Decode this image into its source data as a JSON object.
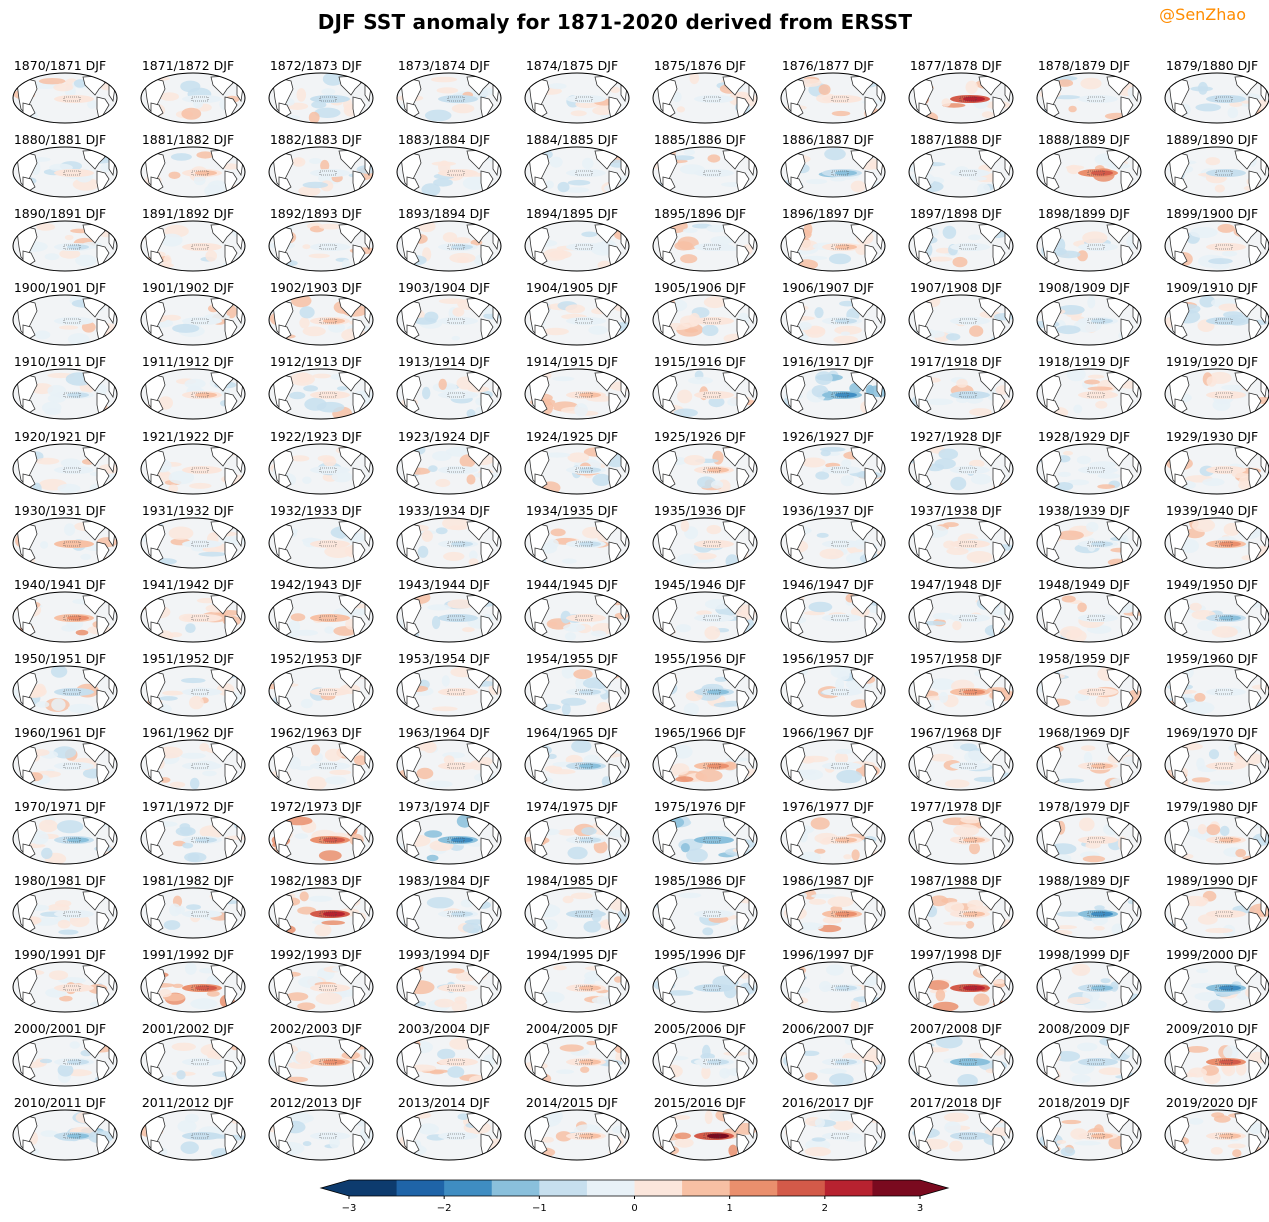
{
  "title": "DJF SST anomaly for 1871-2020 derived from ERSST",
  "credit": "@SenZhao",
  "colors": {
    "credit": "#ff8c00",
    "ocean_neutral": "#f2f4f6",
    "land": "#ffffff",
    "coast": "#333333",
    "levels": [
      "#0d3b6e",
      "#1f64a8",
      "#3f8dc2",
      "#8ac0dc",
      "#c7dfee",
      "#e8f1f7",
      "#fbe6dc",
      "#f7c0a4",
      "#ea8f6d",
      "#d35a49",
      "#b72230",
      "#7a0a1f"
    ]
  },
  "chart_data": {
    "type": "heatmap",
    "title": "DJF SST anomaly for 1871-2020 derived from ERSST",
    "layout": "small multiples, 15 rows x 10 columns of global maps",
    "panels": [
      "1870/1871 DJF",
      "1871/1872 DJF",
      "1872/1873 DJF",
      "1873/1874 DJF",
      "1874/1875 DJF",
      "1875/1876 DJF",
      "1876/1877 DJF",
      "1877/1878 DJF",
      "1878/1879 DJF",
      "1879/1880 DJF",
      "1880/1881 DJF",
      "1881/1882 DJF",
      "1882/1883 DJF",
      "1883/1884 DJF",
      "1884/1885 DJF",
      "1885/1886 DJF",
      "1886/1887 DJF",
      "1887/1888 DJF",
      "1888/1889 DJF",
      "1889/1890 DJF",
      "1890/1891 DJF",
      "1891/1892 DJF",
      "1892/1893 DJF",
      "1893/1894 DJF",
      "1894/1895 DJF",
      "1895/1896 DJF",
      "1896/1897 DJF",
      "1897/1898 DJF",
      "1898/1899 DJF",
      "1899/1900 DJF",
      "1900/1901 DJF",
      "1901/1902 DJF",
      "1902/1903 DJF",
      "1903/1904 DJF",
      "1904/1905 DJF",
      "1905/1906 DJF",
      "1906/1907 DJF",
      "1907/1908 DJF",
      "1908/1909 DJF",
      "1909/1910 DJF",
      "1910/1911 DJF",
      "1911/1912 DJF",
      "1912/1913 DJF",
      "1913/1914 DJF",
      "1914/1915 DJF",
      "1915/1916 DJF",
      "1916/1917 DJF",
      "1917/1918 DJF",
      "1918/1919 DJF",
      "1919/1920 DJF",
      "1920/1921 DJF",
      "1921/1922 DJF",
      "1922/1923 DJF",
      "1923/1924 DJF",
      "1924/1925 DJF",
      "1925/1926 DJF",
      "1926/1927 DJF",
      "1927/1928 DJF",
      "1928/1929 DJF",
      "1929/1930 DJF",
      "1930/1931 DJF",
      "1931/1932 DJF",
      "1932/1933 DJF",
      "1933/1934 DJF",
      "1934/1935 DJF",
      "1935/1936 DJF",
      "1936/1937 DJF",
      "1937/1938 DJF",
      "1938/1939 DJF",
      "1939/1940 DJF",
      "1940/1941 DJF",
      "1941/1942 DJF",
      "1942/1943 DJF",
      "1943/1944 DJF",
      "1944/1945 DJF",
      "1945/1946 DJF",
      "1946/1947 DJF",
      "1947/1948 DJF",
      "1948/1949 DJF",
      "1949/1950 DJF",
      "1950/1951 DJF",
      "1951/1952 DJF",
      "1952/1953 DJF",
      "1953/1954 DJF",
      "1954/1955 DJF",
      "1955/1956 DJF",
      "1956/1957 DJF",
      "1957/1958 DJF",
      "1958/1959 DJF",
      "1959/1960 DJF",
      "1960/1961 DJF",
      "1961/1962 DJF",
      "1962/1963 DJF",
      "1963/1964 DJF",
      "1964/1965 DJF",
      "1965/1966 DJF",
      "1966/1967 DJF",
      "1967/1968 DJF",
      "1968/1969 DJF",
      "1969/1970 DJF",
      "1970/1971 DJF",
      "1971/1972 DJF",
      "1972/1973 DJF",
      "1973/1974 DJF",
      "1974/1975 DJF",
      "1975/1976 DJF",
      "1976/1977 DJF",
      "1977/1978 DJF",
      "1978/1979 DJF",
      "1979/1980 DJF",
      "1980/1981 DJF",
      "1981/1982 DJF",
      "1982/1983 DJF",
      "1983/1984 DJF",
      "1984/1985 DJF",
      "1985/1986 DJF",
      "1986/1987 DJF",
      "1987/1988 DJF",
      "1988/1989 DJF",
      "1989/1990 DJF",
      "1990/1991 DJF",
      "1991/1992 DJF",
      "1992/1993 DJF",
      "1993/1994 DJF",
      "1994/1995 DJF",
      "1995/1996 DJF",
      "1996/1997 DJF",
      "1997/1998 DJF",
      "1998/1999 DJF",
      "1999/2000 DJF",
      "2000/2001 DJF",
      "2001/2002 DJF",
      "2002/2003 DJF",
      "2003/2004 DJF",
      "2004/2005 DJF",
      "2005/2006 DJF",
      "2006/2007 DJF",
      "2007/2008 DJF",
      "2008/2009 DJF",
      "2009/2010 DJF",
      "2010/2011 DJF",
      "2011/2012 DJF",
      "2012/2013 DJF",
      "2013/2014 DJF",
      "2014/2015 DJF",
      "2015/2016 DJF",
      "2016/2017 DJF",
      "2017/2018 DJF",
      "2018/2019 DJF",
      "2019/2020 DJF"
    ],
    "nino34_anomaly_estimate": [
      0.3,
      -0.4,
      -0.8,
      -0.9,
      -0.3,
      -0.4,
      0.3,
      2.3,
      -0.4,
      -0.8,
      0.0,
      0.6,
      -0.4,
      0.4,
      -0.4,
      -0.4,
      -1.3,
      -0.3,
      1.6,
      -0.8,
      -0.6,
      0.1,
      -0.5,
      -0.6,
      -0.3,
      -0.2,
      0.7,
      -0.2,
      -0.5,
      0.2,
      -0.4,
      -0.3,
      0.6,
      -0.5,
      -0.2,
      0.3,
      -0.6,
      -0.4,
      -0.7,
      -0.9,
      -0.6,
      0.5,
      0.0,
      -0.3,
      0.6,
      0.0,
      -1.8,
      -0.8,
      0.2,
      0.3,
      -0.3,
      0.0,
      -0.4,
      -0.5,
      -0.6,
      0.6,
      -0.4,
      -0.1,
      -0.4,
      0.3,
      0.8,
      -0.4,
      0.2,
      -0.7,
      -0.6,
      0.0,
      -0.2,
      0.0,
      -0.6,
      1.0,
      1.4,
      0.3,
      0.9,
      -0.8,
      0.3,
      -0.4,
      -0.3,
      -0.2,
      -0.5,
      -1.2,
      -0.8,
      -0.4,
      0.3,
      0.2,
      -0.7,
      -1.3,
      -0.4,
      1.3,
      0.3,
      -0.2,
      -0.2,
      -0.1,
      -0.4,
      0.3,
      -1.1,
      1.1,
      -0.3,
      -0.5,
      0.6,
      0.3,
      -1.3,
      -0.6,
      1.8,
      -1.9,
      -0.7,
      -1.5,
      0.6,
      0.6,
      0.0,
      0.5,
      -0.3,
      -0.2,
      2.2,
      -0.6,
      -1.0,
      -0.5,
      1.1,
      0.7,
      -1.7,
      0.1,
      0.3,
      1.6,
      0.2,
      0.1,
      0.7,
      -0.8,
      -0.6,
      2.3,
      -1.4,
      -1.6,
      -0.6,
      -0.1,
      1.0,
      0.3,
      0.6,
      -0.6,
      -0.7,
      -1.5,
      -0.8,
      1.5,
      -1.4,
      -0.8,
      -0.4,
      -0.4,
      0.5,
      2.5,
      -0.3,
      -0.9,
      0.7,
      0.5
    ],
    "colorbar": {
      "ticks": [
        "−3",
        "−2",
        "−1",
        "0",
        "1",
        "2",
        "3"
      ],
      "range": [
        -3,
        3
      ],
      "step": 0.5,
      "extend": "both",
      "cmap": "RdBu_r"
    }
  }
}
